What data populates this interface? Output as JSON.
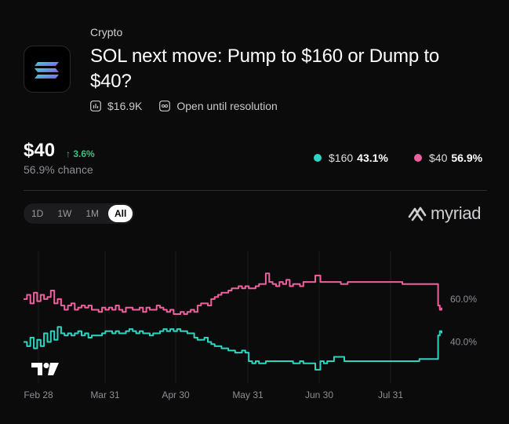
{
  "market": {
    "category": "Crypto",
    "title": "SOL next move: Pump to $160 or Dump to $40?",
    "volume": "$16.9K",
    "status": "Open until resolution",
    "logo_icon": "solana-logo-icon"
  },
  "summary": {
    "price": "$40",
    "change": "↑ 3.6%",
    "chance": "56.9% chance"
  },
  "outcomes": [
    {
      "label": "$160",
      "pct": "43.1%",
      "color": "#2dd4bf"
    },
    {
      "label": "$40",
      "pct": "56.9%",
      "color": "#f0609e"
    }
  ],
  "time_ranges": [
    "1D",
    "1W",
    "1M",
    "All"
  ],
  "selected_range": "All",
  "brand": "myriad",
  "chart_data": {
    "type": "line",
    "x": [
      "Feb 28",
      "Mar 31",
      "Apr 30",
      "May 31",
      "Jun 30",
      "Jul 31"
    ],
    "y_ticks": [
      "60.0%",
      "40.0%"
    ],
    "ylim": [
      20,
      75
    ],
    "series": [
      {
        "name": "$40",
        "color": "#f0609e",
        "points": [
          [
            0,
            60
          ],
          [
            2,
            62
          ],
          [
            4,
            58
          ],
          [
            6,
            63
          ],
          [
            8,
            59
          ],
          [
            10,
            62
          ],
          [
            12,
            60
          ],
          [
            14,
            61
          ],
          [
            16,
            64
          ],
          [
            18,
            58
          ],
          [
            20,
            60
          ],
          [
            22,
            57
          ],
          [
            24,
            55
          ],
          [
            26,
            57
          ],
          [
            28,
            58
          ],
          [
            30,
            55
          ],
          [
            32,
            56
          ],
          [
            34,
            57
          ],
          [
            36,
            56
          ],
          [
            38,
            57
          ],
          [
            40,
            55
          ],
          [
            42,
            55
          ],
          [
            44,
            54
          ],
          [
            46,
            56
          ],
          [
            48,
            55
          ],
          [
            50,
            56
          ],
          [
            52,
            55
          ],
          [
            54,
            57
          ],
          [
            56,
            55
          ],
          [
            58,
            54
          ],
          [
            60,
            56
          ],
          [
            62,
            56
          ],
          [
            64,
            55
          ],
          [
            66,
            55
          ],
          [
            68,
            56
          ],
          [
            70,
            54
          ],
          [
            72,
            56
          ],
          [
            74,
            55
          ],
          [
            76,
            55
          ],
          [
            78,
            57
          ],
          [
            80,
            56
          ],
          [
            82,
            55
          ],
          [
            84,
            54
          ],
          [
            86,
            55
          ],
          [
            88,
            53
          ],
          [
            90,
            53
          ],
          [
            92,
            54
          ],
          [
            94,
            53
          ],
          [
            96,
            54
          ],
          [
            98,
            55
          ],
          [
            100,
            54
          ],
          [
            102,
            57
          ],
          [
            104,
            58
          ],
          [
            106,
            58
          ],
          [
            108,
            57
          ],
          [
            110,
            60
          ],
          [
            112,
            61
          ],
          [
            114,
            62
          ],
          [
            116,
            63
          ],
          [
            118,
            63
          ],
          [
            120,
            64
          ],
          [
            122,
            65
          ],
          [
            124,
            65
          ],
          [
            126,
            66
          ],
          [
            128,
            65
          ],
          [
            130,
            66
          ],
          [
            132,
            65
          ],
          [
            134,
            65
          ],
          [
            136,
            66
          ],
          [
            138,
            67
          ],
          [
            140,
            67
          ],
          [
            142,
            72
          ],
          [
            144,
            68
          ],
          [
            146,
            67
          ],
          [
            148,
            66
          ],
          [
            150,
            68
          ],
          [
            152,
            67
          ],
          [
            154,
            69
          ],
          [
            156,
            66
          ],
          [
            158,
            67
          ],
          [
            160,
            67
          ],
          [
            162,
            66
          ],
          [
            163,
            66
          ],
          [
            164,
            68
          ],
          [
            168,
            68
          ],
          [
            171,
            71
          ],
          [
            172,
            71
          ],
          [
            174,
            68
          ],
          [
            176,
            68
          ],
          [
            178,
            68
          ],
          [
            180,
            68
          ],
          [
            182,
            68
          ],
          [
            186,
            67
          ],
          [
            190,
            68
          ],
          [
            192,
            68
          ],
          [
            194,
            68
          ],
          [
            196,
            68
          ],
          [
            200,
            68
          ],
          [
            204,
            68
          ],
          [
            206,
            68
          ],
          [
            208,
            68
          ],
          [
            210,
            68
          ],
          [
            213,
            68
          ],
          [
            216,
            68
          ],
          [
            219,
            68
          ],
          [
            222,
            67
          ],
          [
            224,
            67
          ],
          [
            226,
            67
          ],
          [
            228,
            67
          ],
          [
            230,
            67
          ],
          [
            232,
            67
          ],
          [
            234,
            67
          ],
          [
            236,
            67
          ],
          [
            238,
            67
          ],
          [
            240,
            67
          ],
          [
            242,
            67
          ],
          [
            243,
            57
          ],
          [
            244,
            55
          ],
          [
            245,
            56
          ]
        ]
      },
      {
        "name": "$160",
        "color": "#2dd4bf",
        "points": [
          [
            0,
            40
          ],
          [
            2,
            38
          ],
          [
            4,
            42
          ],
          [
            6,
            37
          ],
          [
            8,
            41
          ],
          [
            10,
            38
          ],
          [
            12,
            44
          ],
          [
            14,
            40
          ],
          [
            16,
            45
          ],
          [
            18,
            41
          ],
          [
            20,
            47
          ],
          [
            22,
            44
          ],
          [
            24,
            43
          ],
          [
            26,
            44
          ],
          [
            28,
            43
          ],
          [
            30,
            44
          ],
          [
            32,
            45
          ],
          [
            34,
            43
          ],
          [
            36,
            44
          ],
          [
            38,
            42
          ],
          [
            40,
            43
          ],
          [
            42,
            43
          ],
          [
            44,
            43
          ],
          [
            46,
            44
          ],
          [
            48,
            45
          ],
          [
            50,
            45
          ],
          [
            52,
            44
          ],
          [
            54,
            45
          ],
          [
            56,
            44
          ],
          [
            58,
            44
          ],
          [
            60,
            45
          ],
          [
            62,
            46
          ],
          [
            64,
            45
          ],
          [
            66,
            44
          ],
          [
            68,
            45
          ],
          [
            70,
            44
          ],
          [
            72,
            44
          ],
          [
            74,
            43
          ],
          [
            76,
            44
          ],
          [
            78,
            44
          ],
          [
            80,
            45
          ],
          [
            82,
            46
          ],
          [
            84,
            45
          ],
          [
            86,
            46
          ],
          [
            88,
            45
          ],
          [
            90,
            46
          ],
          [
            92,
            45
          ],
          [
            94,
            45
          ],
          [
            96,
            44
          ],
          [
            98,
            44
          ],
          [
            100,
            42
          ],
          [
            102,
            41
          ],
          [
            104,
            41
          ],
          [
            106,
            42
          ],
          [
            108,
            40
          ],
          [
            110,
            39
          ],
          [
            112,
            38
          ],
          [
            114,
            38
          ],
          [
            116,
            37
          ],
          [
            118,
            37
          ],
          [
            120,
            36
          ],
          [
            122,
            36
          ],
          [
            124,
            35
          ],
          [
            126,
            35
          ],
          [
            128,
            36
          ],
          [
            130,
            35
          ],
          [
            132,
            31
          ],
          [
            134,
            30
          ],
          [
            136,
            31
          ],
          [
            138,
            30
          ],
          [
            140,
            30
          ],
          [
            142,
            31
          ],
          [
            144,
            31
          ],
          [
            146,
            31
          ],
          [
            148,
            31
          ],
          [
            150,
            31
          ],
          [
            152,
            31
          ],
          [
            154,
            31
          ],
          [
            156,
            31
          ],
          [
            158,
            30
          ],
          [
            160,
            30
          ],
          [
            162,
            31
          ],
          [
            163,
            31
          ],
          [
            164,
            30
          ],
          [
            166,
            30
          ],
          [
            168,
            30
          ],
          [
            170,
            30
          ],
          [
            171,
            27
          ],
          [
            172,
            27
          ],
          [
            174,
            31
          ],
          [
            176,
            30
          ],
          [
            178,
            31
          ],
          [
            180,
            31
          ],
          [
            182,
            33
          ],
          [
            186,
            33
          ],
          [
            188,
            31
          ],
          [
            190,
            31
          ],
          [
            194,
            31
          ],
          [
            196,
            31
          ],
          [
            200,
            31
          ],
          [
            204,
            31
          ],
          [
            206,
            31
          ],
          [
            208,
            31
          ],
          [
            210,
            31
          ],
          [
            213,
            31
          ],
          [
            216,
            31
          ],
          [
            219,
            31
          ],
          [
            222,
            31
          ],
          [
            224,
            31
          ],
          [
            226,
            31
          ],
          [
            228,
            31
          ],
          [
            230,
            31
          ],
          [
            232,
            32
          ],
          [
            234,
            32
          ],
          [
            236,
            32
          ],
          [
            238,
            32
          ],
          [
            240,
            32
          ],
          [
            242,
            32
          ],
          [
            243,
            43
          ],
          [
            244,
            45
          ],
          [
            245,
            44
          ]
        ]
      }
    ]
  }
}
